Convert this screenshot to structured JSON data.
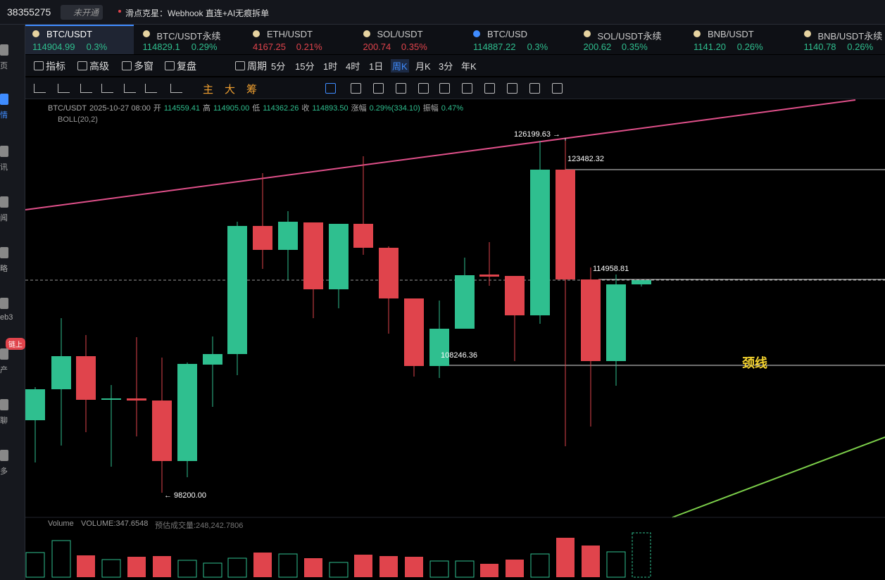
{
  "top_bar": {
    "account": "38355275",
    "badge": "未开通",
    "promo": "滑点克星：Webhook 直连+AI无痕拆单"
  },
  "sidebar": [
    "页",
    "情",
    "讯",
    "闻",
    "略",
    "eb3",
    "链上",
    "产",
    "聊",
    "多"
  ],
  "tickers": [
    {
      "name": "BTC/USDT",
      "price": "114904.99",
      "change": "0.3%",
      "dir": "up"
    },
    {
      "name": "BTC/USDT永续",
      "price": "114829.1",
      "change": "0.29%",
      "dir": "up"
    },
    {
      "name": "ETH/USDT",
      "price": "4167.25",
      "change": "0.21%",
      "dir": "down"
    },
    {
      "name": "SOL/USDT",
      "price": "200.74",
      "change": "0.35%",
      "dir": "down"
    },
    {
      "name": "BTC/USD",
      "price": "114887.22",
      "change": "0.3%",
      "dir": "up"
    },
    {
      "name": "SOL/USDT永续",
      "price": "200.62",
      "change": "0.35%",
      "dir": "up"
    },
    {
      "name": "BNB/USDT",
      "price": "1141.20",
      "change": "0.26%",
      "dir": "up"
    },
    {
      "name": "BNB/USDT永续",
      "price": "1140.78",
      "change": "0.26%",
      "dir": "up"
    }
  ],
  "toolbar": {
    "tools": [
      "指标",
      "高级",
      "多窗",
      "复盘",
      "周期"
    ],
    "periods": [
      "5分",
      "15分",
      "1时",
      "4时",
      "1日",
      "周K",
      "月K",
      "3分",
      "年K"
    ],
    "active_period": "周K"
  },
  "drawing_tools": [
    "主",
    "大",
    "筹"
  ],
  "info": {
    "symbol": "BTC/USDT",
    "time": "2025-10-27 08:00",
    "fields": [
      {
        "label": "开",
        "value": "114559.41"
      },
      {
        "label": "高",
        "value": "114905.00"
      },
      {
        "label": "低",
        "value": "114362.26"
      },
      {
        "label": "收",
        "value": "114893.50"
      },
      {
        "label": "涨幅",
        "value": "0.29%(334.10)"
      },
      {
        "label": "振幅",
        "value": "0.47%"
      }
    ]
  },
  "indicator": "BOLL(20,2)",
  "annotations": [
    "126199.63 →",
    "123482.32",
    "114958.81",
    "108246.36",
    "← 98200.00",
    "颈线"
  ],
  "volume": {
    "title": "Volume",
    "value": "VOLUME:347.6548",
    "estimate": "预估成交量:248,242.7806"
  }
}
